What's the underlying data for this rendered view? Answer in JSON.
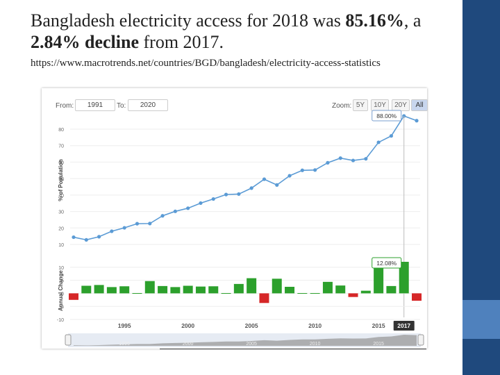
{
  "slide": {
    "title_prefix": "Bangladesh electricity access for 2018 was ",
    "title_value": "85.16%",
    "title_mid": ", a ",
    "title_change": "2.84% decline",
    "title_suffix": " from 2017.",
    "url": "https://www.macrotrends.net/countries/BGD/bangladesh/electricity-access-statistics",
    "colors": {
      "sidebar": "#1f497d",
      "accent": "#4f81bd"
    }
  },
  "controls": {
    "from_label": "From:",
    "from_value": "1991",
    "to_label": "To:",
    "to_value": "2020",
    "zoom_label": "Zoom:",
    "zoom_options": [
      "5Y",
      "10Y",
      "20Y",
      "All"
    ],
    "zoom_selected": "All"
  },
  "chart_data": [
    {
      "type": "line",
      "ylabel": "% of Population",
      "ylim": [
        10,
        88
      ],
      "yticks": [
        10,
        20,
        30,
        40,
        50,
        60,
        70,
        80
      ],
      "x": [
        1991,
        1992,
        1993,
        1994,
        1995,
        1996,
        1997,
        1998,
        1999,
        2000,
        2001,
        2002,
        2003,
        2004,
        2005,
        2006,
        2007,
        2008,
        2009,
        2010,
        2011,
        2012,
        2013,
        2014,
        2015,
        2016,
        2017,
        2018
      ],
      "values": [
        14.4,
        12.8,
        14.7,
        18.0,
        20.1,
        22.6,
        22.7,
        27.4,
        30.1,
        32.0,
        35.1,
        37.6,
        40.3,
        40.6,
        44.2,
        49.6,
        46.1,
        51.7,
        55.0,
        55.2,
        59.6,
        62.4,
        61.0,
        62.0,
        72.0,
        75.9,
        88.0,
        85.16
      ],
      "tooltip": "88.00%",
      "color": "#5b9bd5"
    },
    {
      "type": "bar",
      "ylabel": "Annual Change",
      "ylim": [
        -10,
        12.08
      ],
      "yticks": [
        -10,
        -5,
        0,
        5,
        10
      ],
      "x": [
        1991,
        1992,
        1993,
        1994,
        1995,
        1996,
        1997,
        1998,
        1999,
        2000,
        2001,
        2002,
        2003,
        2004,
        2005,
        2006,
        2007,
        2008,
        2009,
        2010,
        2011,
        2012,
        2013,
        2014,
        2015,
        2016,
        2017,
        2018
      ],
      "values": [
        -2.5,
        2.9,
        3.2,
        2.4,
        2.7,
        0.1,
        4.7,
        2.8,
        2.4,
        2.9,
        2.6,
        2.7,
        0.1,
        3.6,
        5.8,
        -3.7,
        5.6,
        2.5,
        0.1,
        0.1,
        4.4,
        3.0,
        -1.4,
        1.0,
        10.0,
        2.8,
        12.08,
        -2.84
      ],
      "tooltip": "12.08%",
      "x_axis_labels": [
        "1995",
        "2000",
        "2005",
        "2010",
        "2015",
        "2017"
      ],
      "highlight_label": "2017",
      "colors": {
        "positive": "#2ca02c",
        "negative": "#d62728"
      }
    }
  ],
  "navigator": {
    "labels": [
      "1995",
      "2000",
      "2005",
      "2010",
      "2015"
    ]
  }
}
